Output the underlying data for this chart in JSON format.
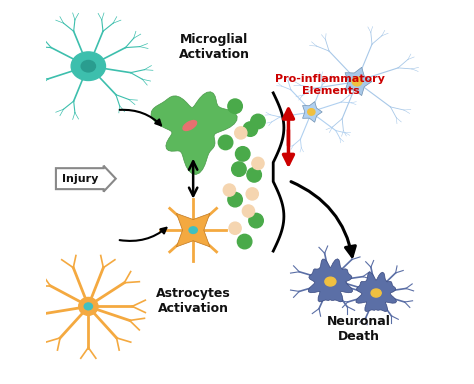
{
  "background_color": "#ffffff",
  "labels": {
    "microglial": "Microglial\nActivation",
    "astrocytes": "Astrocytes\nActivation",
    "proinflammatory": "Pro-inflammatory\nElements",
    "neuronal_death": "Neuronal\nDeath",
    "injury": "Injury"
  },
  "colors": {
    "microglia_body": "#3dbfad",
    "microglia_dark": "#2a9d8f",
    "astrocyte_body": "#f4a940",
    "green_cell_body": "#5cb85c",
    "neuron_healthy_body": "#a8c8e8",
    "neuron_dead_body": "#5b6fa6",
    "nucleus_yellow": "#f0c040",
    "nucleus_pink": "#e87070",
    "nucleus_cyan": "#40c0c0",
    "dot_green": "#4aaa4a",
    "dot_light": "#f5d5b0",
    "label_red": "#cc0000",
    "label_black": "#111111"
  }
}
